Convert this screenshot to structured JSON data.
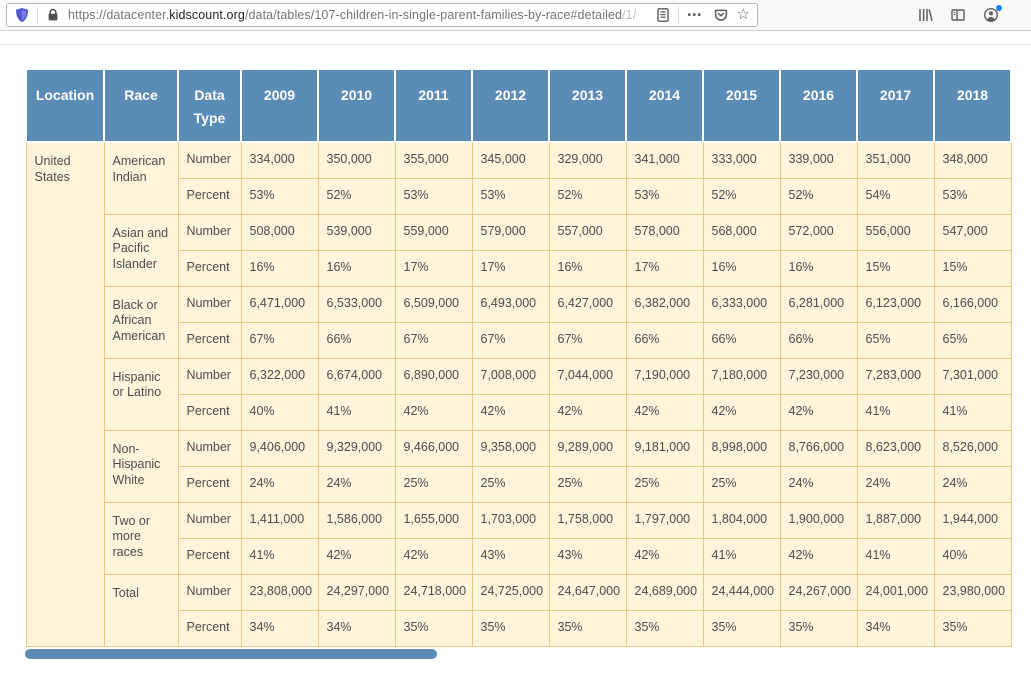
{
  "browser": {
    "url": {
      "scheme_and_sub": "https://datacenter.",
      "domain": "kidscount.org",
      "path": "/data/tables/107-children-in-single-parent-families-by-race#detailed",
      "suffix": "/1/"
    },
    "icons": {
      "tracking_protection_shield": "shield-icon",
      "lock": "lock-icon",
      "reader_view": "reader-view-icon",
      "page_actions": "•••",
      "pocket": "pocket-icon",
      "bookmark_star": "☆",
      "library": "library-icon",
      "sidebars": "sidebar-icon",
      "account": "account-icon"
    }
  },
  "table": {
    "headers": [
      "Location",
      "Race",
      "Data Type",
      "2009",
      "2010",
      "2011",
      "2012",
      "2013",
      "2014",
      "2015",
      "2016",
      "2017",
      "2018"
    ],
    "location": "United States",
    "row_labels": {
      "number": "Number",
      "percent": "Percent"
    },
    "groups": [
      {
        "race": "American Indian",
        "number": [
          "334,000",
          "350,000",
          "355,000",
          "345,000",
          "329,000",
          "341,000",
          "333,000",
          "339,000",
          "351,000",
          "348,000"
        ],
        "percent": [
          "53%",
          "52%",
          "53%",
          "53%",
          "52%",
          "53%",
          "52%",
          "52%",
          "54%",
          "53%"
        ]
      },
      {
        "race": "Asian and Pacific Islander",
        "number": [
          "508,000",
          "539,000",
          "559,000",
          "579,000",
          "557,000",
          "578,000",
          "568,000",
          "572,000",
          "556,000",
          "547,000"
        ],
        "percent": [
          "16%",
          "16%",
          "17%",
          "17%",
          "16%",
          "17%",
          "16%",
          "16%",
          "15%",
          "15%"
        ]
      },
      {
        "race": "Black or African American",
        "number": [
          "6,471,000",
          "6,533,000",
          "6,509,000",
          "6,493,000",
          "6,427,000",
          "6,382,000",
          "6,333,000",
          "6,281,000",
          "6,123,000",
          "6,166,000"
        ],
        "percent": [
          "67%",
          "66%",
          "67%",
          "67%",
          "67%",
          "66%",
          "66%",
          "66%",
          "65%",
          "65%"
        ]
      },
      {
        "race": "Hispanic or Latino",
        "number": [
          "6,322,000",
          "6,674,000",
          "6,890,000",
          "7,008,000",
          "7,044,000",
          "7,190,000",
          "7,180,000",
          "7,230,000",
          "7,283,000",
          "7,301,000"
        ],
        "percent": [
          "40%",
          "41%",
          "42%",
          "42%",
          "42%",
          "42%",
          "42%",
          "42%",
          "41%",
          "41%"
        ]
      },
      {
        "race": "Non-Hispanic White",
        "number": [
          "9,406,000",
          "9,329,000",
          "9,466,000",
          "9,358,000",
          "9,289,000",
          "9,181,000",
          "8,998,000",
          "8,766,000",
          "8,623,000",
          "8,526,000"
        ],
        "percent": [
          "24%",
          "24%",
          "25%",
          "25%",
          "25%",
          "25%",
          "25%",
          "24%",
          "24%",
          "24%"
        ]
      },
      {
        "race": "Two or more races",
        "number": [
          "1,411,000",
          "1,586,000",
          "1,655,000",
          "1,703,000",
          "1,758,000",
          "1,797,000",
          "1,804,000",
          "1,900,000",
          "1,887,000",
          "1,944,000"
        ],
        "percent": [
          "41%",
          "42%",
          "42%",
          "43%",
          "43%",
          "42%",
          "41%",
          "42%",
          "41%",
          "40%"
        ]
      },
      {
        "race": "Total",
        "number": [
          "23,808,000",
          "24,297,000",
          "24,718,000",
          "24,725,000",
          "24,647,000",
          "24,689,000",
          "24,444,000",
          "24,267,000",
          "24,001,000",
          "23,980,000"
        ],
        "percent": [
          "34%",
          "34%",
          "35%",
          "35%",
          "35%",
          "35%",
          "35%",
          "35%",
          "34%",
          "35%"
        ]
      }
    ]
  },
  "colors": {
    "header_bg": "#5B8CB5",
    "cell_bg": "#FDF4DA",
    "cell_border": "#E6CA82",
    "body_text": "#4D4D4D",
    "scrollbar_thumb": "#5B8CB5",
    "notification_dot": "#0A84FF",
    "shield_accent": "#5457CF"
  }
}
